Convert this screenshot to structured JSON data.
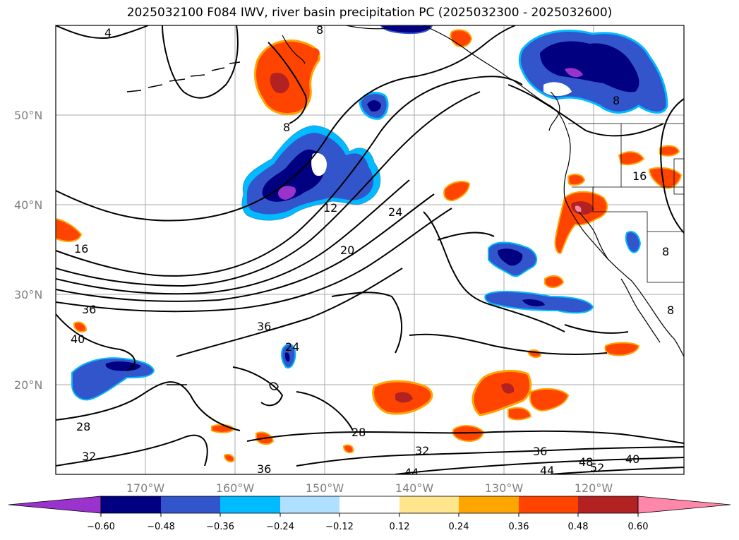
{
  "title": "2025032100 F084 IWV, river basin precipitation PC (2025032300 - 2025032600)",
  "map": {
    "lat_labels": [
      "50°N",
      "40°N",
      "30°N",
      "20°N"
    ],
    "lon_labels": [
      "170°W",
      "160°W",
      "150°W",
      "140°W",
      "130°W",
      "120°W"
    ],
    "contour_labels": [
      "4",
      "8",
      "8",
      "8",
      "8",
      "8",
      "12",
      "16",
      "16",
      "20",
      "24",
      "24",
      "28",
      "28",
      "32",
      "32",
      "36",
      "36",
      "36",
      "36",
      "40",
      "40",
      "44",
      "44",
      "48",
      "52"
    ]
  },
  "colorbar": {
    "ticks": [
      "−0.60",
      "−0.48",
      "−0.36",
      "−0.24",
      "−0.12",
      "0.12",
      "0.24",
      "0.36",
      "0.48",
      "0.60"
    ],
    "colors": [
      "#9933cc",
      "#000080",
      "#3355cc",
      "#00bbff",
      "#b0e0ff",
      "#ffffff",
      "#ffe68c",
      "#ffa500",
      "#ff4400",
      "#b22222",
      "#ff88aa"
    ]
  },
  "legend_colors": {
    "neg_extreme": "#9933cc",
    "neg_strong": "#000080",
    "neg_mid": "#3355cc",
    "neg_light": "#00bbff",
    "neg_faint": "#b0e0ff",
    "pos_faint": "#ffe68c",
    "pos_light": "#ffa500",
    "pos_mid": "#ff4400",
    "pos_strong": "#b22222",
    "pos_extreme": "#ff88aa"
  }
}
